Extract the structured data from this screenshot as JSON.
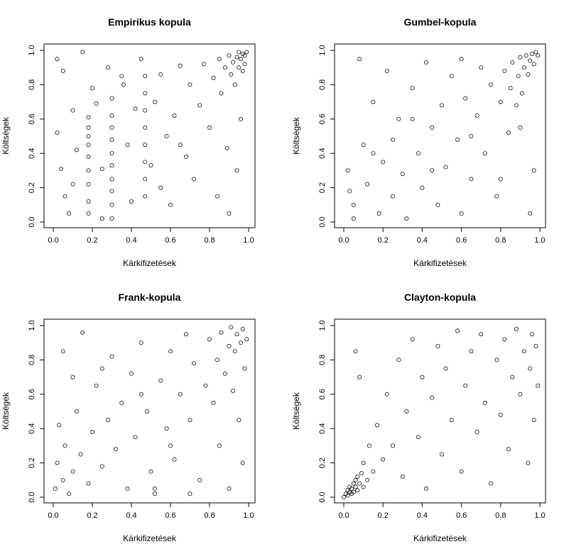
{
  "figure": {
    "background": "#ffffff",
    "ink": "#000000"
  },
  "chart_data": [
    {
      "type": "scatter",
      "title": "Empirikus kopula",
      "xlabel": "Kárkifizetések",
      "ylabel": "Költségek",
      "xlim": [
        0,
        1
      ],
      "ylim": [
        0,
        1
      ],
      "xticks": [
        "0.0",
        "0.2",
        "0.4",
        "0.6",
        "0.8",
        "1.0"
      ],
      "yticks": [
        "0.0",
        "0.2",
        "0.4",
        "0.6",
        "0.8",
        "1.0"
      ],
      "marker": "open-circle",
      "points": [
        [
          0.02,
          0.95
        ],
        [
          0.05,
          0.88
        ],
        [
          0.15,
          0.99
        ],
        [
          0.02,
          0.52
        ],
        [
          0.04,
          0.31
        ],
        [
          0.06,
          0.15
        ],
        [
          0.08,
          0.05
        ],
        [
          0.1,
          0.22
        ],
        [
          0.12,
          0.42
        ],
        [
          0.18,
          0.61
        ],
        [
          0.18,
          0.55
        ],
        [
          0.18,
          0.5
        ],
        [
          0.18,
          0.45
        ],
        [
          0.18,
          0.38
        ],
        [
          0.18,
          0.3
        ],
        [
          0.18,
          0.22
        ],
        [
          0.18,
          0.12
        ],
        [
          0.18,
          0.05
        ],
        [
          0.2,
          0.78
        ],
        [
          0.22,
          0.69
        ],
        [
          0.25,
          0.31
        ],
        [
          0.28,
          0.9
        ],
        [
          0.3,
          0.72
        ],
        [
          0.3,
          0.62
        ],
        [
          0.3,
          0.55
        ],
        [
          0.3,
          0.48
        ],
        [
          0.3,
          0.4
        ],
        [
          0.3,
          0.33
        ],
        [
          0.3,
          0.25
        ],
        [
          0.3,
          0.18
        ],
        [
          0.3,
          0.1
        ],
        [
          0.3,
          0.02
        ],
        [
          0.35,
          0.85
        ],
        [
          0.38,
          0.45
        ],
        [
          0.4,
          0.12
        ],
        [
          0.42,
          0.66
        ],
        [
          0.45,
          0.95
        ],
        [
          0.47,
          0.85
        ],
        [
          0.47,
          0.75
        ],
        [
          0.47,
          0.65
        ],
        [
          0.47,
          0.55
        ],
        [
          0.47,
          0.45
        ],
        [
          0.47,
          0.35
        ],
        [
          0.47,
          0.25
        ],
        [
          0.47,
          0.15
        ],
        [
          0.5,
          0.33
        ],
        [
          0.52,
          0.7
        ],
        [
          0.55,
          0.86
        ],
        [
          0.55,
          0.2
        ],
        [
          0.58,
          0.5
        ],
        [
          0.6,
          0.1
        ],
        [
          0.62,
          0.62
        ],
        [
          0.65,
          0.91
        ],
        [
          0.68,
          0.38
        ],
        [
          0.7,
          0.8
        ],
        [
          0.72,
          0.25
        ],
        [
          0.75,
          0.68
        ],
        [
          0.77,
          0.92
        ],
        [
          0.8,
          0.55
        ],
        [
          0.82,
          0.84
        ],
        [
          0.84,
          0.15
        ],
        [
          0.85,
          0.95
        ],
        [
          0.86,
          0.75
        ],
        [
          0.88,
          0.9
        ],
        [
          0.89,
          0.43
        ],
        [
          0.9,
          0.97
        ],
        [
          0.91,
          0.86
        ],
        [
          0.92,
          0.93
        ],
        [
          0.93,
          0.8
        ],
        [
          0.94,
          0.96
        ],
        [
          0.95,
          0.99
        ],
        [
          0.95,
          0.9
        ],
        [
          0.96,
          0.95
        ],
        [
          0.97,
          0.98
        ],
        [
          0.97,
          0.88
        ],
        [
          0.98,
          0.97
        ],
        [
          0.99,
          0.99
        ],
        [
          0.98,
          0.92
        ],
        [
          0.96,
          0.6
        ],
        [
          0.94,
          0.3
        ],
        [
          0.9,
          0.05
        ],
        [
          0.65,
          0.45
        ],
        [
          0.36,
          0.8
        ],
        [
          0.1,
          0.65
        ],
        [
          0.25,
          0.02
        ]
      ]
    },
    {
      "type": "scatter",
      "title": "Gumbel-kopula",
      "xlabel": "Kárkifizetések",
      "ylabel": "Költségek",
      "xlim": [
        0,
        1
      ],
      "ylim": [
        0,
        1
      ],
      "xticks": [
        "0.0",
        "0.2",
        "0.4",
        "0.6",
        "0.8",
        "1.0"
      ],
      "yticks": [
        "0.0",
        "0.2",
        "0.4",
        "0.6",
        "0.8",
        "1.0"
      ],
      "marker": "open-circle",
      "points": [
        [
          0.02,
          0.3
        ],
        [
          0.05,
          0.1
        ],
        [
          0.08,
          0.95
        ],
        [
          0.1,
          0.45
        ],
        [
          0.12,
          0.22
        ],
        [
          0.15,
          0.7
        ],
        [
          0.18,
          0.05
        ],
        [
          0.2,
          0.35
        ],
        [
          0.22,
          0.88
        ],
        [
          0.25,
          0.15
        ],
        [
          0.28,
          0.6
        ],
        [
          0.3,
          0.28
        ],
        [
          0.32,
          0.02
        ],
        [
          0.35,
          0.78
        ],
        [
          0.38,
          0.4
        ],
        [
          0.4,
          0.2
        ],
        [
          0.42,
          0.93
        ],
        [
          0.45,
          0.55
        ],
        [
          0.48,
          0.1
        ],
        [
          0.5,
          0.68
        ],
        [
          0.52,
          0.32
        ],
        [
          0.55,
          0.85
        ],
        [
          0.58,
          0.48
        ],
        [
          0.6,
          0.05
        ],
        [
          0.62,
          0.72
        ],
        [
          0.65,
          0.25
        ],
        [
          0.68,
          0.62
        ],
        [
          0.7,
          0.9
        ],
        [
          0.72,
          0.4
        ],
        [
          0.75,
          0.8
        ],
        [
          0.78,
          0.15
        ],
        [
          0.8,
          0.7
        ],
        [
          0.82,
          0.88
        ],
        [
          0.84,
          0.52
        ],
        [
          0.85,
          0.78
        ],
        [
          0.86,
          0.93
        ],
        [
          0.88,
          0.68
        ],
        [
          0.89,
          0.85
        ],
        [
          0.9,
          0.96
        ],
        [
          0.91,
          0.75
        ],
        [
          0.92,
          0.9
        ],
        [
          0.93,
          0.97
        ],
        [
          0.94,
          0.86
        ],
        [
          0.95,
          0.94
        ],
        [
          0.96,
          0.98
        ],
        [
          0.97,
          0.92
        ],
        [
          0.98,
          0.99
        ],
        [
          0.99,
          0.97
        ],
        [
          0.97,
          0.3
        ],
        [
          0.95,
          0.05
        ],
        [
          0.6,
          0.95
        ],
        [
          0.35,
          0.6
        ],
        [
          0.15,
          0.4
        ],
        [
          0.05,
          0.02
        ],
        [
          0.03,
          0.18
        ],
        [
          0.25,
          0.48
        ],
        [
          0.45,
          0.3
        ],
        [
          0.65,
          0.5
        ],
        [
          0.8,
          0.25
        ],
        [
          0.9,
          0.55
        ]
      ]
    },
    {
      "type": "scatter",
      "title": "Frank-kopula",
      "xlabel": "Kárkifizetések",
      "ylabel": "Költségek",
      "xlim": [
        0,
        1
      ],
      "ylim": [
        0,
        1
      ],
      "xticks": [
        "0.0",
        "0.2",
        "0.4",
        "0.6",
        "0.8",
        "1.0"
      ],
      "yticks": [
        "0.0",
        "0.2",
        "0.4",
        "0.6",
        "0.8",
        "1.0"
      ],
      "marker": "open-circle",
      "points": [
        [
          0.01,
          0.05
        ],
        [
          0.02,
          0.2
        ],
        [
          0.03,
          0.42
        ],
        [
          0.05,
          0.1
        ],
        [
          0.06,
          0.3
        ],
        [
          0.08,
          0.02
        ],
        [
          0.1,
          0.15
        ],
        [
          0.12,
          0.5
        ],
        [
          0.14,
          0.25
        ],
        [
          0.15,
          0.96
        ],
        [
          0.18,
          0.08
        ],
        [
          0.2,
          0.38
        ],
        [
          0.22,
          0.65
        ],
        [
          0.25,
          0.18
        ],
        [
          0.28,
          0.45
        ],
        [
          0.3,
          0.82
        ],
        [
          0.32,
          0.28
        ],
        [
          0.35,
          0.55
        ],
        [
          0.38,
          0.05
        ],
        [
          0.4,
          0.72
        ],
        [
          0.42,
          0.35
        ],
        [
          0.45,
          0.9
        ],
        [
          0.48,
          0.5
        ],
        [
          0.5,
          0.15
        ],
        [
          0.52,
          0.05
        ],
        [
          0.52,
          0.02
        ],
        [
          0.55,
          0.68
        ],
        [
          0.58,
          0.4
        ],
        [
          0.6,
          0.85
        ],
        [
          0.62,
          0.22
        ],
        [
          0.65,
          0.6
        ],
        [
          0.68,
          0.95
        ],
        [
          0.7,
          0.45
        ],
        [
          0.72,
          0.78
        ],
        [
          0.75,
          0.1
        ],
        [
          0.78,
          0.65
        ],
        [
          0.8,
          0.92
        ],
        [
          0.82,
          0.55
        ],
        [
          0.84,
          0.8
        ],
        [
          0.85,
          0.3
        ],
        [
          0.86,
          0.96
        ],
        [
          0.88,
          0.72
        ],
        [
          0.9,
          0.88
        ],
        [
          0.91,
          0.99
        ],
        [
          0.92,
          0.62
        ],
        [
          0.93,
          0.85
        ],
        [
          0.94,
          0.95
        ],
        [
          0.95,
          0.45
        ],
        [
          0.96,
          0.9
        ],
        [
          0.97,
          0.98
        ],
        [
          0.98,
          0.75
        ],
        [
          0.99,
          0.92
        ],
        [
          0.97,
          0.2
        ],
        [
          0.9,
          0.05
        ],
        [
          0.7,
          0.02
        ],
        [
          0.45,
          0.6
        ],
        [
          0.25,
          0.75
        ],
        [
          0.1,
          0.7
        ],
        [
          0.05,
          0.85
        ],
        [
          0.6,
          0.3
        ]
      ]
    },
    {
      "type": "scatter",
      "title": "Clayton-kopula",
      "xlabel": "Kárkifizetések",
      "ylabel": "Költségek",
      "xlim": [
        0,
        1
      ],
      "ylim": [
        0,
        1
      ],
      "xticks": [
        "0.0",
        "0.2",
        "0.4",
        "0.6",
        "0.8",
        "1.0"
      ],
      "yticks": [
        "0.0",
        "0.2",
        "0.4",
        "0.6",
        "0.8",
        "1.0"
      ],
      "marker": "open-circle",
      "points": [
        [
          0.0,
          0.0
        ],
        [
          0.01,
          0.02
        ],
        [
          0.02,
          0.01
        ],
        [
          0.02,
          0.04
        ],
        [
          0.03,
          0.03
        ],
        [
          0.03,
          0.06
        ],
        [
          0.04,
          0.02
        ],
        [
          0.04,
          0.05
        ],
        [
          0.05,
          0.08
        ],
        [
          0.05,
          0.03
        ],
        [
          0.06,
          0.06
        ],
        [
          0.06,
          0.1
        ],
        [
          0.07,
          0.04
        ],
        [
          0.07,
          0.12
        ],
        [
          0.08,
          0.08
        ],
        [
          0.09,
          0.14
        ],
        [
          0.1,
          0.06
        ],
        [
          0.1,
          0.2
        ],
        [
          0.12,
          0.1
        ],
        [
          0.13,
          0.3
        ],
        [
          0.15,
          0.15
        ],
        [
          0.17,
          0.42
        ],
        [
          0.2,
          0.22
        ],
        [
          0.22,
          0.6
        ],
        [
          0.25,
          0.3
        ],
        [
          0.28,
          0.8
        ],
        [
          0.3,
          0.12
        ],
        [
          0.32,
          0.5
        ],
        [
          0.35,
          0.92
        ],
        [
          0.38,
          0.35
        ],
        [
          0.4,
          0.7
        ],
        [
          0.42,
          0.05
        ],
        [
          0.45,
          0.58
        ],
        [
          0.48,
          0.88
        ],
        [
          0.5,
          0.25
        ],
        [
          0.52,
          0.75
        ],
        [
          0.55,
          0.45
        ],
        [
          0.58,
          0.97
        ],
        [
          0.6,
          0.15
        ],
        [
          0.62,
          0.65
        ],
        [
          0.65,
          0.85
        ],
        [
          0.68,
          0.38
        ],
        [
          0.7,
          0.95
        ],
        [
          0.72,
          0.55
        ],
        [
          0.75,
          0.08
        ],
        [
          0.78,
          0.8
        ],
        [
          0.8,
          0.48
        ],
        [
          0.82,
          0.92
        ],
        [
          0.84,
          0.28
        ],
        [
          0.86,
          0.7
        ],
        [
          0.88,
          0.98
        ],
        [
          0.9,
          0.6
        ],
        [
          0.92,
          0.85
        ],
        [
          0.94,
          0.2
        ],
        [
          0.95,
          0.75
        ],
        [
          0.96,
          0.95
        ],
        [
          0.97,
          0.45
        ],
        [
          0.98,
          0.88
        ],
        [
          0.99,
          0.65
        ],
        [
          0.06,
          0.85
        ],
        [
          0.08,
          0.7
        ]
      ]
    }
  ]
}
